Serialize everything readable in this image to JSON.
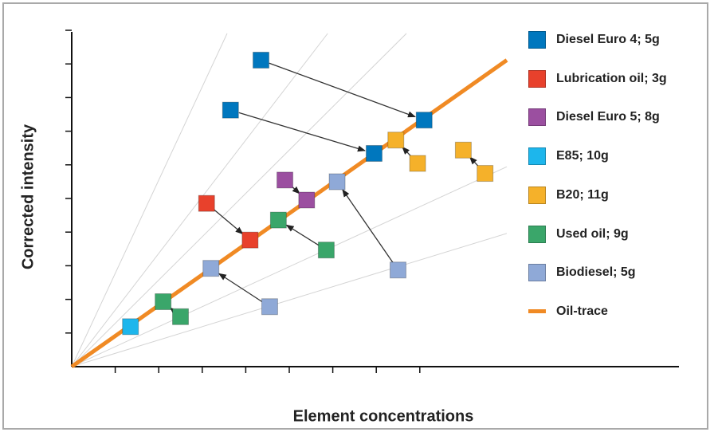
{
  "chart_data": {
    "type": "scatter",
    "title": "",
    "xlabel": "Element concentrations",
    "ylabel": "Corrected intensity",
    "xlim": [
      0,
      10
    ],
    "ylim": [
      0,
      10
    ],
    "grid": "radial reference lines from origin",
    "legend_position": "right",
    "oil_trace": {
      "name": "Oil-trace",
      "color": "#f08a24",
      "from": [
        0,
        0
      ],
      "to": [
        10.0,
        9.2
      ]
    },
    "reference_slopes": [
      2.8,
      1.7,
      1.3,
      0.6,
      0.4
    ],
    "series": [
      {
        "name": "Diesel Euro 4; 5g",
        "color": "#0077be",
        "points": [
          [
            4.35,
            9.2
          ],
          [
            3.65,
            7.7
          ],
          [
            8.1,
            7.4
          ],
          [
            6.95,
            6.4
          ]
        ],
        "arrows": [
          [
            [
              4.35,
              9.2
            ],
            [
              8.1,
              7.4
            ]
          ],
          [
            [
              3.65,
              7.7
            ],
            [
              6.95,
              6.4
            ]
          ]
        ]
      },
      {
        "name": "Lubrication oil; 3g",
        "color": "#e8412c",
        "points": [
          [
            3.1,
            4.9
          ],
          [
            4.1,
            3.8
          ]
        ],
        "arrows": [
          [
            [
              3.1,
              4.9
            ],
            [
              4.1,
              3.8
            ]
          ]
        ]
      },
      {
        "name": "Diesel Euro 5; 8g",
        "color": "#9b4fa0",
        "points": [
          [
            4.9,
            5.6
          ],
          [
            5.4,
            5.0
          ]
        ],
        "arrows": [
          [
            [
              4.9,
              5.6
            ],
            [
              5.4,
              5.0
            ]
          ]
        ]
      },
      {
        "name": "E85; 10g",
        "color": "#1db6ec",
        "points": [
          [
            1.35,
            1.2
          ]
        ],
        "arrows": []
      },
      {
        "name": "B20; 11g",
        "color": "#f5b12a",
        "points": [
          [
            7.45,
            6.8
          ],
          [
            7.95,
            6.1
          ],
          [
            9.0,
            6.5
          ],
          [
            9.5,
            5.8
          ]
        ],
        "arrows": [
          [
            [
              7.95,
              6.1
            ],
            [
              7.45,
              6.8
            ]
          ],
          [
            [
              9.5,
              5.8
            ],
            [
              9.0,
              6.5
            ]
          ]
        ]
      },
      {
        "name": "Used oil; 9g",
        "color": "#3aa66a",
        "points": [
          [
            4.75,
            4.4
          ],
          [
            5.85,
            3.5
          ],
          [
            2.1,
            1.95
          ],
          [
            2.5,
            1.5
          ]
        ],
        "arrows": [
          [
            [
              5.85,
              3.5
            ],
            [
              4.75,
              4.4
            ]
          ],
          [
            [
              2.5,
              1.5
            ],
            [
              2.1,
              1.95
            ]
          ]
        ]
      },
      {
        "name": "Biodiesel; 5g",
        "color": "#8fa9d7",
        "points": [
          [
            6.1,
            5.55
          ],
          [
            7.5,
            2.9
          ],
          [
            3.2,
            2.95
          ],
          [
            4.55,
            1.8
          ]
        ],
        "arrows": [
          [
            [
              7.5,
              2.9
            ],
            [
              6.1,
              5.55
            ]
          ],
          [
            [
              4.55,
              1.8
            ],
            [
              3.2,
              2.95
            ]
          ]
        ]
      }
    ]
  }
}
